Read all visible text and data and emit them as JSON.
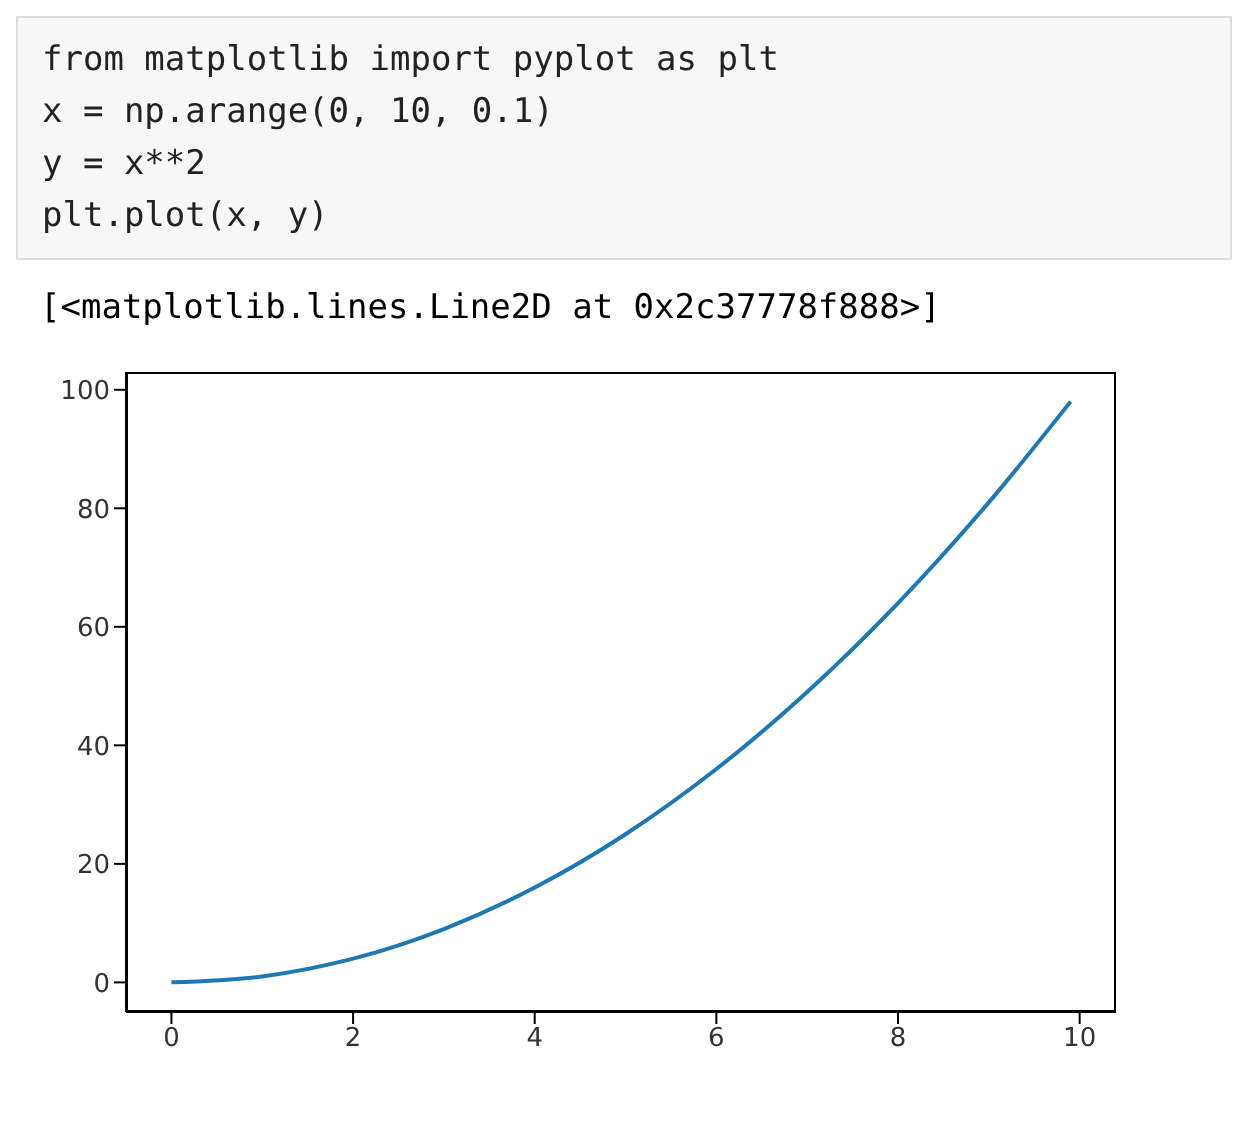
{
  "chart_data": {
    "type": "line",
    "annotations": [
      "from matplotlib import pyplot as plt",
      "x = np.arange(0, 10, 0.1)",
      "y = x**2",
      "plt.plot(x, y)",
      "[<matplotlib.lines.Line2D at 0x2c37778f888>]"
    ],
    "x": [
      0,
      1,
      2,
      3,
      4,
      5,
      6,
      7,
      8,
      9,
      9.9
    ],
    "series": [
      {
        "color": "#1f77b4",
        "values": [
          0,
          1,
          4,
          9,
          16,
          25,
          36,
          49,
          64,
          81,
          98
        ]
      }
    ],
    "xlim": [
      -0.5,
      10.4
    ],
    "xticks": [
      0,
      2,
      4,
      6,
      8,
      10
    ],
    "ylim": [
      -5,
      103
    ],
    "yticks": [
      0,
      20,
      40,
      60,
      80,
      100
    ],
    "grid": false,
    "legend": false,
    "marker": "none",
    "line_style": "solid"
  }
}
